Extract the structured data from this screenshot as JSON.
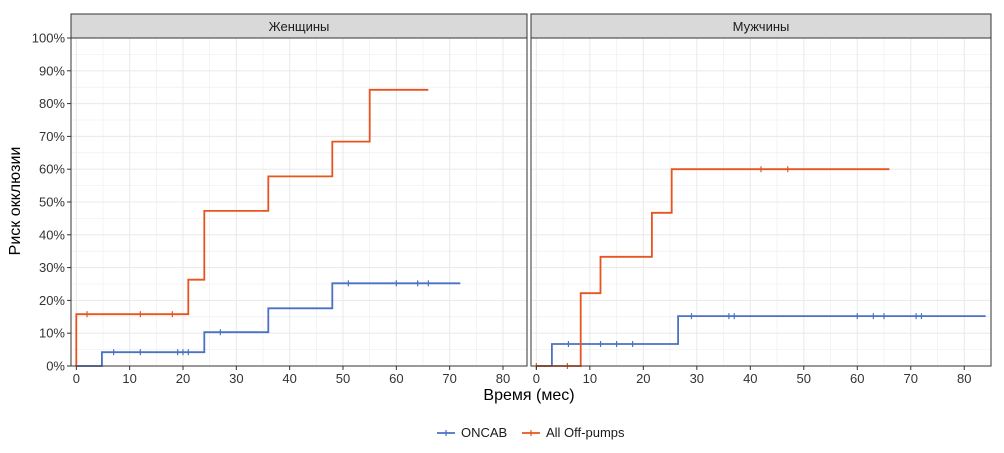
{
  "chart_data": {
    "type": "line",
    "subtype": "step",
    "xlabel": "Время (мес)",
    "ylabel": "Риск окклюзии",
    "y_ticks": [
      "0%",
      "10%",
      "20%",
      "30%",
      "40%",
      "50%",
      "60%",
      "70%",
      "80%",
      "90%",
      "100%"
    ],
    "grid": true,
    "legend_position": "bottom",
    "legend": [
      {
        "name": "ONCAB",
        "color": "#4a72c2"
      },
      {
        "name": "All Off-pumps",
        "color": "#e8541e"
      }
    ],
    "panels": [
      {
        "title": "Женщины",
        "xlim": [
          -1,
          84.5
        ],
        "ylim": [
          0,
          1
        ],
        "x_ticks": [
          "0",
          "10",
          "20",
          "30",
          "40",
          "50",
          "60",
          "70",
          "80"
        ],
        "series": [
          {
            "name": "ONCAB",
            "color": "#4a72c2",
            "steps": [
              [
                0,
                0
              ],
              [
                4.8,
                0.042
              ],
              [
                24,
                0.103
              ],
              [
                36,
                0.176
              ],
              [
                48,
                0.252
              ],
              [
                72,
                0.252
              ]
            ],
            "censor": [
              7,
              12,
              19,
              20,
              21,
              27,
              51,
              60,
              64,
              66
            ]
          },
          {
            "name": "All Off-pumps",
            "color": "#e8541e",
            "steps": [
              [
                0,
                0.158
              ],
              [
                21,
                0.263
              ],
              [
                24,
                0.473
              ],
              [
                36,
                0.578
              ],
              [
                48,
                0.684
              ],
              [
                55,
                0.842
              ],
              [
                66,
                0.842
              ]
            ],
            "censor": [
              2,
              12,
              18
            ]
          }
        ]
      },
      {
        "title": "Мужчины",
        "xlim": [
          -1,
          85
        ],
        "ylim": [
          0,
          1
        ],
        "x_ticks": [
          "0",
          "10",
          "20",
          "30",
          "40",
          "50",
          "60",
          "70",
          "80"
        ],
        "series": [
          {
            "name": "ONCAB",
            "color": "#4a72c2",
            "steps": [
              [
                0,
                0
              ],
              [
                2.9,
                0.067
              ],
              [
                26.5,
                0.152
              ],
              [
                84,
                0.152
              ]
            ],
            "censor": [
              6,
              12,
              15,
              18,
              29,
              36,
              37,
              60,
              63,
              65,
              71,
              72
            ]
          },
          {
            "name": "All Off-pumps",
            "color": "#e8541e",
            "steps": [
              [
                0,
                0
              ],
              [
                8.3,
                0.222
              ],
              [
                12,
                0.333
              ],
              [
                21.6,
                0.467
              ],
              [
                25.3,
                0.6
              ],
              [
                66,
                0.6
              ]
            ],
            "censor": [
              0,
              5.8,
              42,
              47
            ]
          }
        ]
      }
    ]
  }
}
